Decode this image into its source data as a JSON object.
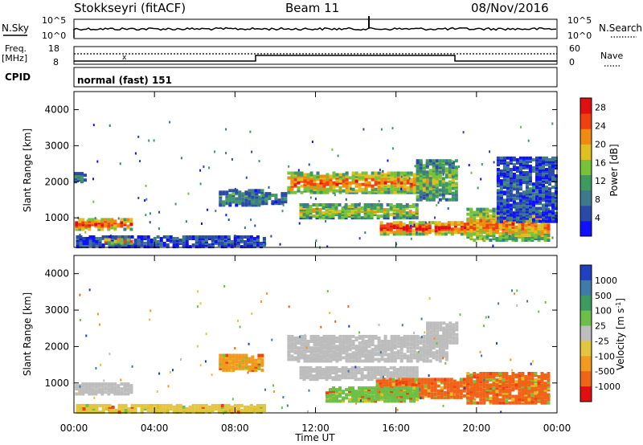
{
  "header": {
    "station": "Stokkseyri (fitACF)",
    "beam": "Beam 11",
    "date": "08/Nov/2016"
  },
  "strip_labels": {
    "nsky": "N.Sky",
    "nsky_hi": "10^5",
    "nsky_lo": "10^0",
    "nsearch": "N.Search",
    "nsearch_hi": "10^5",
    "nsearch_lo": "10^0",
    "freq_line1": "Freq.",
    "freq_line2": "[MHz]",
    "freq_hi": "18",
    "freq_lo": "8",
    "nave": "Nave",
    "nave_hi": "60",
    "nave_lo": "0",
    "cpid": "CPID",
    "cpid_value": "normal (fast) 151"
  },
  "chart_data": [
    {
      "type": "heatmap",
      "panel": "power",
      "ylabel": "Slant Range [km]",
      "xlabel": "",
      "x_ticks": [
        "00:00",
        "04:00",
        "08:00",
        "12:00",
        "16:00",
        "20:00",
        "00:00"
      ],
      "xlim_hours": [
        0,
        24
      ],
      "ylim": [
        180,
        4500
      ],
      "y_ticks": [
        1000,
        2000,
        3000,
        4000
      ],
      "colorbar": {
        "label": "Power [dB]",
        "ticks": [
          "4",
          "8",
          "12",
          "16",
          "20",
          "24",
          "28"
        ],
        "range": [
          0,
          30
        ]
      },
      "regions": [
        {
          "t0": 0.05,
          "t1": 2.9,
          "r0": 680,
          "r1": 980,
          "level": 0.85
        },
        {
          "t0": 0.0,
          "t1": 0.6,
          "r0": 2000,
          "r1": 2250,
          "level": 0.25
        },
        {
          "t0": 0.1,
          "t1": 9.5,
          "r0": 200,
          "r1": 480,
          "level": 0.15
        },
        {
          "t0": 1.5,
          "t1": 2.9,
          "r0": 300,
          "r1": 420,
          "level": 0.7
        },
        {
          "t0": 7.2,
          "t1": 9.3,
          "r0": 1350,
          "r1": 1800,
          "level": 0.3
        },
        {
          "t0": 9.0,
          "t1": 10.5,
          "r0": 1400,
          "r1": 1700,
          "level": 0.25
        },
        {
          "t0": 10.6,
          "t1": 18.0,
          "r0": 1700,
          "r1": 2250,
          "level": 0.75
        },
        {
          "t0": 11.2,
          "t1": 17.0,
          "r0": 1000,
          "r1": 1400,
          "level": 0.55
        },
        {
          "t0": 15.2,
          "t1": 21.0,
          "r0": 550,
          "r1": 900,
          "level": 0.9
        },
        {
          "t0": 17.0,
          "t1": 19.0,
          "r0": 1500,
          "r1": 2600,
          "level": 0.45
        },
        {
          "t0": 19.5,
          "t1": 23.6,
          "r0": 380,
          "r1": 1250,
          "level": 0.7
        },
        {
          "t0": 21.0,
          "t1": 24.0,
          "r0": 900,
          "r1": 2700,
          "level": 0.15
        }
      ]
    },
    {
      "type": "heatmap",
      "panel": "velocity",
      "ylabel": "Slant Range [km]",
      "xlabel": "Time UT",
      "x_ticks": [
        "00:00",
        "04:00",
        "08:00",
        "12:00",
        "16:00",
        "20:00",
        "00:00"
      ],
      "xlim_hours": [
        0,
        24
      ],
      "ylim": [
        180,
        4500
      ],
      "y_ticks": [
        1000,
        2000,
        3000,
        4000
      ],
      "colorbar": {
        "label": "Velocity [m s^-1]",
        "ticks": [
          "1000",
          "500",
          "100",
          "25",
          "-25",
          "-100",
          "-500",
          "-1000"
        ]
      },
      "regions": [
        {
          "t0": 0.05,
          "t1": 2.9,
          "r0": 700,
          "r1": 980,
          "vel": "ground"
        },
        {
          "t0": 0.1,
          "t1": 9.5,
          "r0": 200,
          "r1": 400,
          "vel": "-25"
        },
        {
          "t0": 7.2,
          "t1": 9.3,
          "r0": 1350,
          "r1": 1800,
          "vel": "-100"
        },
        {
          "t0": 10.6,
          "t1": 18.5,
          "r0": 1600,
          "r1": 2300,
          "vel": "ground"
        },
        {
          "t0": 11.2,
          "t1": 17.0,
          "r0": 1100,
          "r1": 1450,
          "vel": "ground"
        },
        {
          "t0": 15.0,
          "t1": 19.5,
          "r0": 600,
          "r1": 1100,
          "vel": "-500"
        },
        {
          "t0": 19.5,
          "t1": 23.6,
          "r0": 450,
          "r1": 1300,
          "vel": "-500"
        },
        {
          "t0": 12.5,
          "t1": 17.0,
          "r0": 500,
          "r1": 900,
          "vel": "100"
        },
        {
          "t0": 17.5,
          "t1": 19.0,
          "r0": 2100,
          "r1": 2650,
          "vel": "ground"
        }
      ]
    }
  ]
}
